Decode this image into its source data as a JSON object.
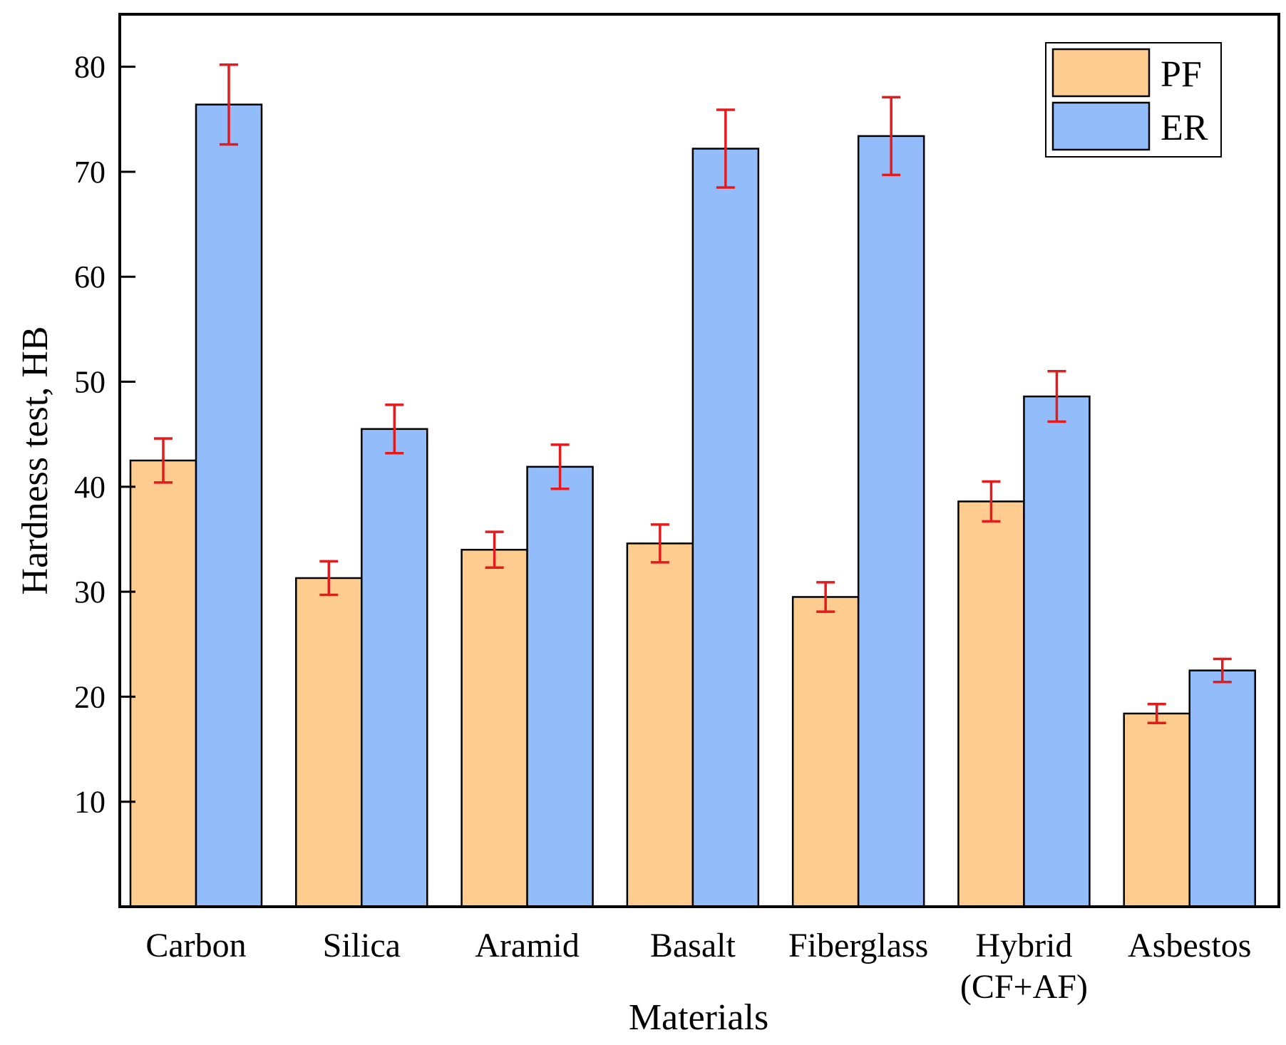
{
  "chart_data": {
    "type": "bar",
    "title": "",
    "xlabel": "Materials",
    "ylabel": "Hardness test, HB",
    "ylim": [
      0,
      85
    ],
    "yticks": [
      10,
      20,
      30,
      40,
      50,
      60,
      70,
      80
    ],
    "categories": [
      "Carbon",
      "Silica",
      "Aramid",
      "Basalt",
      "Fiberglass",
      "Hybrid\n(CF+AF)",
      "Asbestos"
    ],
    "series": [
      {
        "name": "PF",
        "color": "#FFCC8F",
        "values": [
          42.5,
          31.3,
          34.0,
          34.6,
          29.5,
          38.6,
          18.4
        ],
        "errors": [
          2.1,
          1.6,
          1.7,
          1.8,
          1.4,
          1.9,
          0.9
        ]
      },
      {
        "name": "ER",
        "color": "#92BDFA",
        "values": [
          76.4,
          45.5,
          41.9,
          72.2,
          73.4,
          48.6,
          22.5
        ],
        "errors": [
          3.8,
          2.3,
          2.1,
          3.7,
          3.7,
          2.4,
          1.1
        ]
      }
    ],
    "error_bar_color": "#E41A1C",
    "legend_position": "top-right",
    "grid": false
  }
}
